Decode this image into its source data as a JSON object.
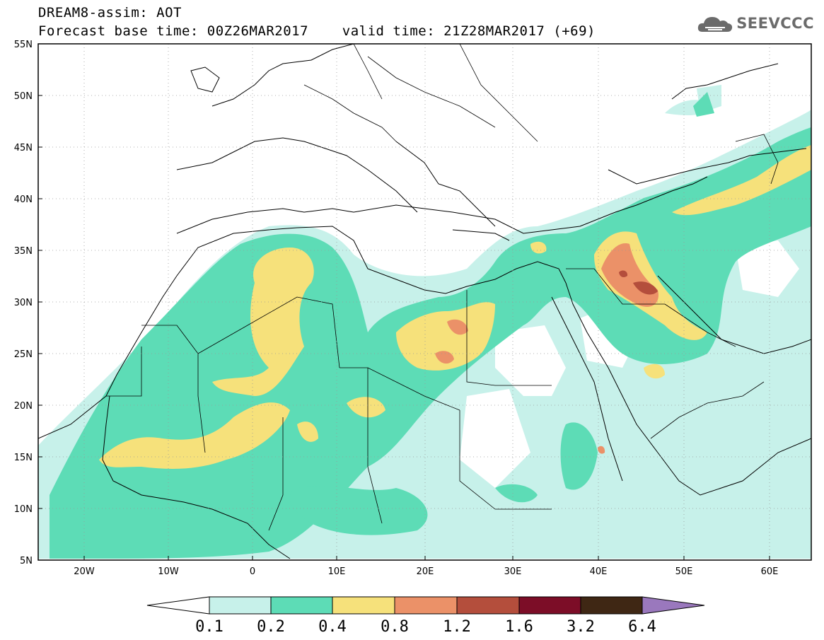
{
  "header": {
    "line1": "DREAM8-assim: AOT",
    "line2": "Forecast base time: 00Z26MAR2017    valid time: 21Z28MAR2017 (+69)"
  },
  "logo": {
    "text": "SEEVCCC",
    "icon": "cloud-icon"
  },
  "axes": {
    "lon_ticks": [
      "20W",
      "10W",
      "0",
      "10E",
      "20E",
      "30E",
      "40E",
      "50E",
      "60E"
    ],
    "lat_ticks": [
      "55N",
      "50N",
      "45N",
      "40N",
      "35N",
      "30N",
      "25N",
      "20N",
      "15N",
      "10N",
      "5N"
    ]
  },
  "colorbar": {
    "labels": [
      "0.1",
      "0.2",
      "0.4",
      "0.8",
      "1.2",
      "1.6",
      "3.2",
      "6.4"
    ],
    "colors": [
      "#ffffff",
      "#c7f1ea",
      "#5ddcb6",
      "#f6e17b",
      "#eb9168",
      "#b44e3c",
      "#7c0d27",
      "#3f2714",
      "#9a78bd"
    ]
  },
  "colors": {
    "level1": "#c7f1ea",
    "level2": "#5ddcb6",
    "level3": "#f6e17b",
    "level4": "#eb9168",
    "level5": "#b44e3c",
    "level6": "#7c0d27"
  }
}
